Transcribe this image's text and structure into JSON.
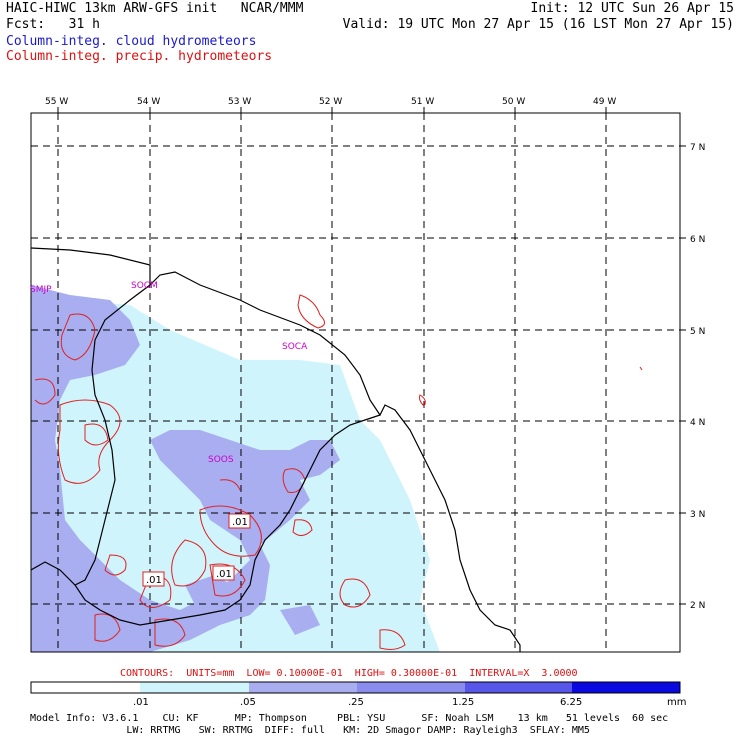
{
  "header": {
    "line1_left": "HAIC-HIWC 13km ARW-GFS init   NCAR/MMM",
    "line1_right": "Init: 12 UTC Sun 26 Apr 15",
    "fcst": "Fcst:   31 h",
    "valid": "Valid: 19 UTC Mon 27 Apr 15 (16 LST Mon 27 Apr 15)",
    "legend_cloud": "Column-integ. cloud hydrometeors",
    "legend_precip": "Column-integ. precip. hydrometeors",
    "colors": {
      "cloud": "#1a1acc",
      "precip": "#dd1111"
    }
  },
  "map": {
    "lon_labels": [
      "55 W",
      "54 W",
      "53 W",
      "52 W",
      "51 W",
      "50 W",
      "49 W"
    ],
    "lat_labels": [
      "7 N",
      "6 N",
      "5 N",
      "4 N",
      "3 N",
      "2 N"
    ],
    "stations": [
      "SMJP",
      "SOCM",
      "SOCA",
      "SOOS"
    ],
    "contour_labels": [
      ".01",
      ".01",
      ".01"
    ],
    "fill_colors": [
      "#ffffff",
      "#cff4fb",
      "#a9aef0",
      "#6f6fea",
      "#3131e6",
      "#0a0ae0"
    ],
    "coast_color": "#000000",
    "precip_color": "#e02020"
  },
  "contours_info": "CONTOURS:  UNITS=mm  LOW= 0.10000E-01  HIGH= 0.30000E-01  INTERVAL=X  3.0000",
  "colorbar": {
    "ticks": [
      ".01",
      ".05",
      ".25",
      "1.25",
      "6.25"
    ],
    "units": "mm"
  },
  "model_info": {
    "line1": "Model Info: V3.6.1    CU: KF      MP: Thompson     PBL: YSU      SF: Noah LSM    13 km   51 levels  60 sec",
    "line2": "                LW: RRTMG   SW: RRTMG  DIFF: full   KM: 2D Smagor DAMP: Rayleigh3  SFLAY: MM5"
  }
}
